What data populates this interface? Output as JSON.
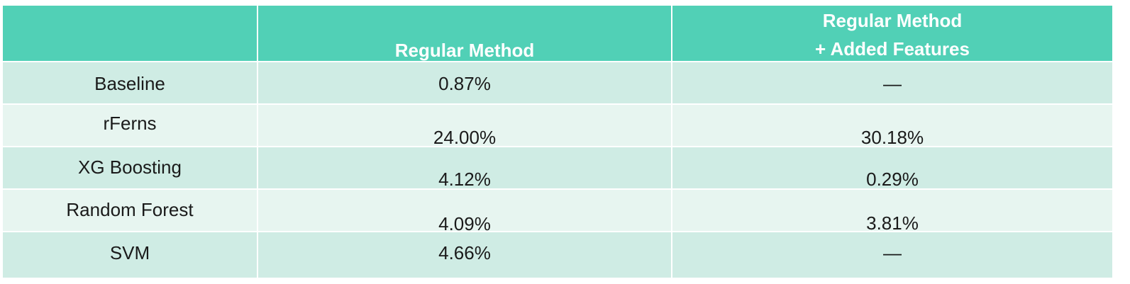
{
  "table": {
    "columns": [
      "",
      "Regular Method",
      "Regular Method\n+ Added Features"
    ],
    "header_line1": "Regular Method",
    "header_line2": "+ Added Features",
    "rows": [
      {
        "label": "Baseline",
        "regular": "0.87%",
        "added": "—"
      },
      {
        "label": "rFerns",
        "regular": "24.00%",
        "added": "30.18%"
      },
      {
        "label": "XG Boosting",
        "regular": "4.12%",
        "added": "0.29%"
      },
      {
        "label": "Random Forest",
        "regular": "4.09%",
        "added": "3.81%"
      },
      {
        "label": "SVM",
        "regular": "4.66%",
        "added": "—"
      }
    ]
  },
  "colors": {
    "header": "#51d0b6",
    "row_dark": "#cfece4",
    "row_light": "#e7f5f0",
    "header_text": "#ffffff"
  }
}
